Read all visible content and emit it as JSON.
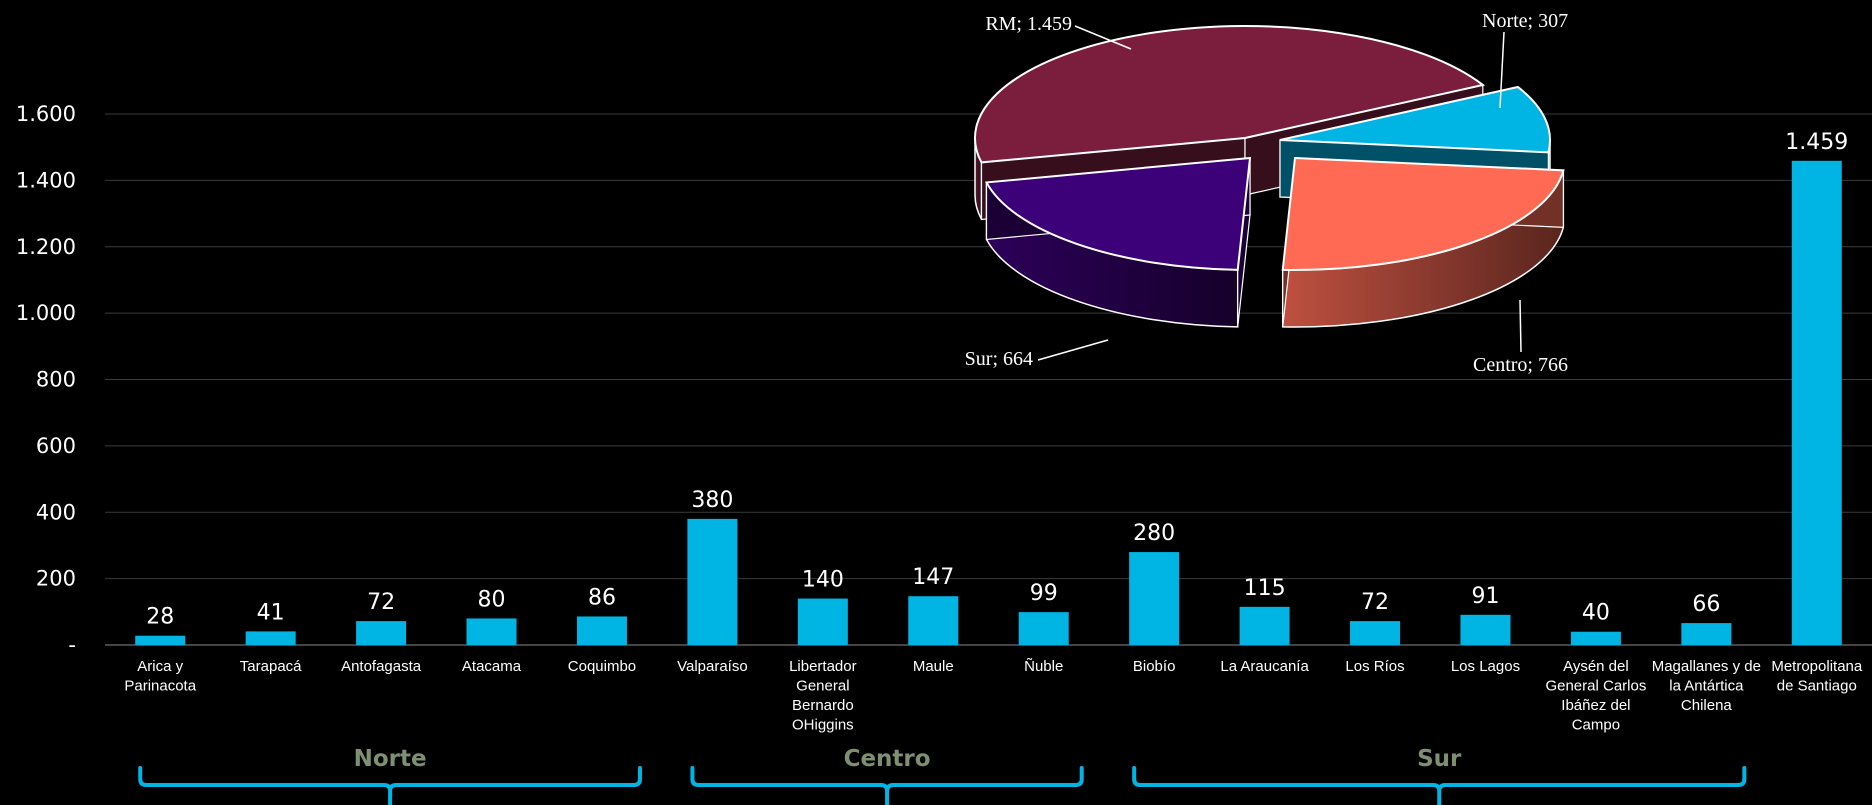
{
  "chart_data": [
    {
      "type": "bar",
      "categories": [
        "Arica y Parinacota",
        "Tarapacá",
        "Antofagasta",
        "Atacama",
        "Coquimbo",
        "Valparaíso",
        "Libertador General Bernardo OHiggins",
        "Maule",
        "Ñuble",
        "Biobío",
        "La Araucanía",
        "Los Ríos",
        "Los Lagos",
        "Aysén del General Carlos Ibáñez del Campo",
        "Magallanes y de la Antártica Chilena",
        "Metropolitana de Santiago"
      ],
      "category_lines": [
        [
          "Arica y",
          "Parinacota"
        ],
        [
          "Tarapacá"
        ],
        [
          "Antofagasta"
        ],
        [
          "Atacama"
        ],
        [
          "Coquimbo"
        ],
        [
          "Valparaíso"
        ],
        [
          "Libertador",
          "General",
          "Bernardo",
          "OHiggins"
        ],
        [
          "Maule"
        ],
        [
          "Ñuble"
        ],
        [
          "Biobío"
        ],
        [
          "La Araucanía"
        ],
        [
          "Los Ríos"
        ],
        [
          "Los Lagos"
        ],
        [
          "Aysén del",
          "General Carlos",
          "Ibáñez del",
          "Campo"
        ],
        [
          "Magallanes y de",
          "la Antártica",
          "Chilena"
        ],
        [
          "Metropolitana",
          "de Santiago"
        ]
      ],
      "values": [
        28,
        41,
        72,
        80,
        86,
        380,
        140,
        147,
        99,
        280,
        115,
        72,
        91,
        40,
        66,
        1459
      ],
      "value_labels": [
        "28",
        "41",
        "72",
        "80",
        "86",
        "380",
        "140",
        "147",
        "99",
        "280",
        "115",
        "72",
        "91",
        "40",
        "66",
        "1.459"
      ],
      "yticks": [
        0,
        200,
        400,
        600,
        800,
        1000,
        1200,
        1400,
        1600
      ],
      "ytick_labels": [
        "-",
        "200",
        "400",
        "600",
        "800",
        "1.000",
        "1.200",
        "1.400",
        "1.600"
      ],
      "ylim": [
        0,
        1600
      ],
      "grid": true,
      "bar_color": "#00b4e4",
      "groups": [
        {
          "label": "Norte",
          "from": 0,
          "to": 4
        },
        {
          "label": "Centro",
          "from": 5,
          "to": 8
        },
        {
          "label": "Sur",
          "from": 9,
          "to": 14
        }
      ],
      "group_label_color": "#7f8f72",
      "bracket_color": "#00b4e4"
    },
    {
      "type": "pie",
      "slices": [
        {
          "label": "RM",
          "value": 1459,
          "value_text": "1.459",
          "color": "#7b1e3e"
        },
        {
          "label": "Norte",
          "value": 307,
          "value_text": "307",
          "color": "#00b4e4"
        },
        {
          "label": "Centro",
          "value": 766,
          "value_text": "766",
          "color": "#ff6a55"
        },
        {
          "label": "Sur",
          "value": 664,
          "value_text": "664",
          "color": "#3c0078"
        }
      ],
      "style": "3d-exploded"
    }
  ]
}
